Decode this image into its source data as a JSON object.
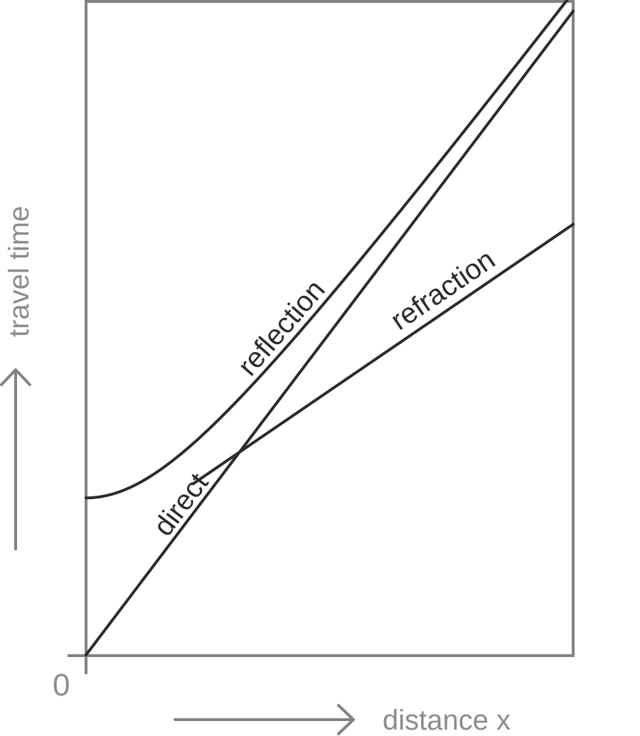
{
  "chart_data": {
    "type": "line",
    "title": "",
    "xlabel": "distance x",
    "ylabel": "travel time",
    "origin_label": "0",
    "xlim": [
      0,
      10
    ],
    "ylim": [
      0,
      13.4
    ],
    "grid": false,
    "x_ticks": [],
    "y_ticks": [],
    "series": [
      {
        "name": "direct",
        "kind": "linear",
        "slope": 1.32,
        "intercept": 0,
        "label_at": 2.3
      },
      {
        "name": "reflection",
        "kind": "hyperbola",
        "t0": 3.22,
        "slope": 1.32,
        "label_at": 4.4
      },
      {
        "name": "refraction",
        "kind": "linear",
        "x_start": 2.2,
        "slope": 0.682,
        "intercept": 2.01,
        "label_at": 7.5
      }
    ]
  }
}
